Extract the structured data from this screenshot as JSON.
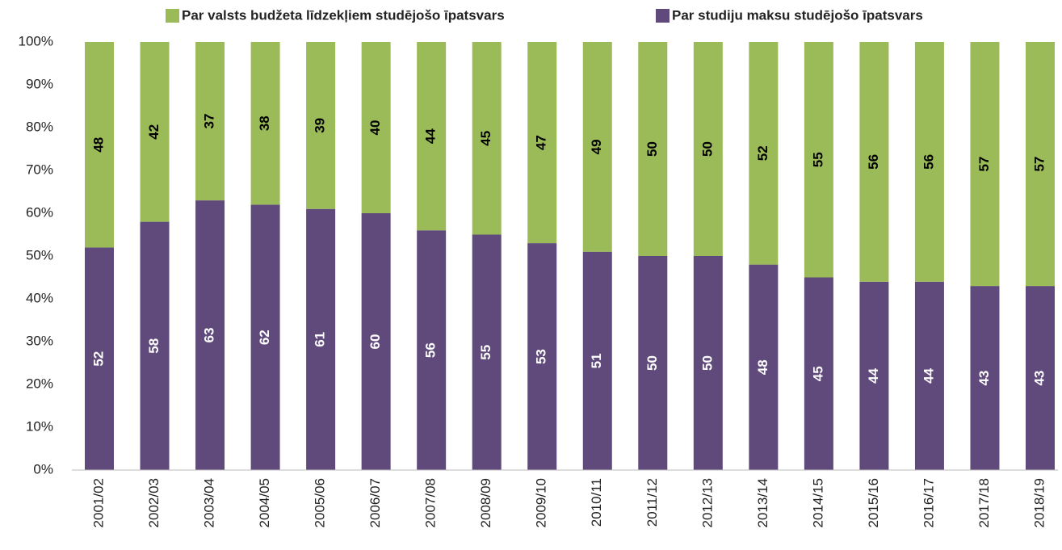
{
  "chart_data": {
    "type": "stacked_bar",
    "categories": [
      "2001/02",
      "2002/03",
      "2003/04",
      "2004/05",
      "2005/06",
      "2006/07",
      "2007/08",
      "2008/09",
      "2009/10",
      "2010/11",
      "2011/12",
      "2012/13",
      "2013/14",
      "2014/15",
      "2015/16",
      "2016/17",
      "2017/18",
      "2018/19"
    ],
    "series": [
      {
        "name": "Par valsts budžeta līdzekļiem studējošo īpatsvars",
        "color": "#9bbb59",
        "label_color": "#000000",
        "values": [
          48,
          42,
          37,
          38,
          39,
          40,
          44,
          45,
          47,
          49,
          50,
          50,
          52,
          55,
          56,
          56,
          57,
          57
        ]
      },
      {
        "name": "Par studiju maksu studējošo īpatsvars",
        "color": "#604a7b",
        "label_color": "#ffffff",
        "values": [
          52,
          58,
          63,
          62,
          61,
          60,
          56,
          55,
          53,
          51,
          50,
          50,
          48,
          45,
          44,
          44,
          43,
          43
        ]
      }
    ],
    "ylim": [
      0,
      100
    ],
    "yticks": [
      {
        "value": 0,
        "label": "0%"
      },
      {
        "value": 10,
        "label": "10%"
      },
      {
        "value": 20,
        "label": "20%"
      },
      {
        "value": 30,
        "label": "30%"
      },
      {
        "value": 40,
        "label": "40%"
      },
      {
        "value": 50,
        "label": "50%"
      },
      {
        "value": 60,
        "label": "60%"
      },
      {
        "value": 70,
        "label": "70%"
      },
      {
        "value": 80,
        "label": "80%"
      },
      {
        "value": 90,
        "label": "90%"
      },
      {
        "value": 100,
        "label": "100%"
      }
    ],
    "legend": "top",
    "grid": false
  }
}
